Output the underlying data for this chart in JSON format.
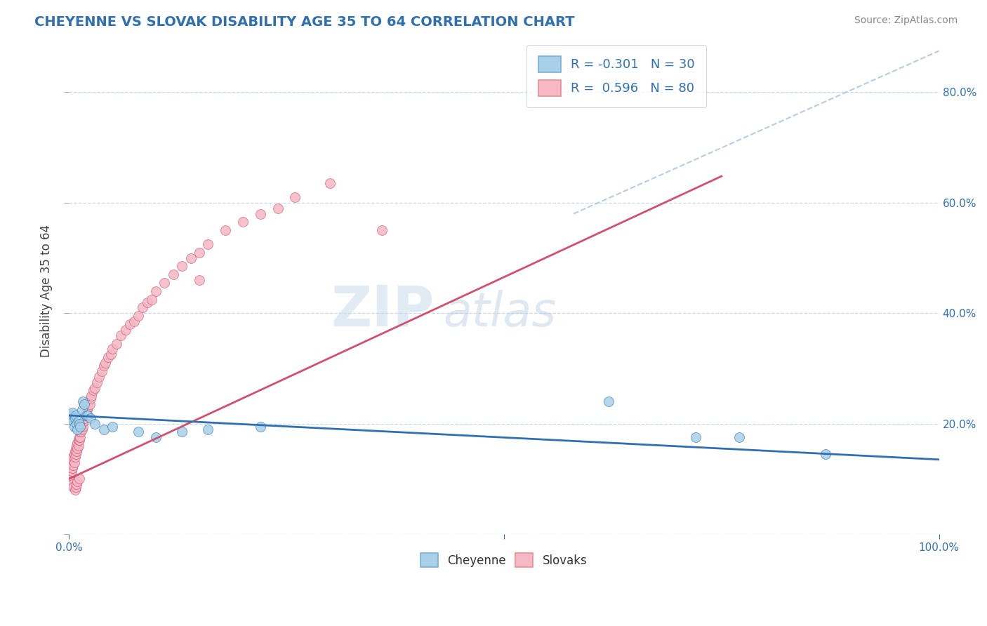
{
  "title": "CHEYENNE VS SLOVAK DISABILITY AGE 35 TO 64 CORRELATION CHART",
  "source": "Source: ZipAtlas.com",
  "ylabel": "Disability Age 35 to 64",
  "xlim": [
    0,
    1.0
  ],
  "ylim": [
    0,
    0.88
  ],
  "cheyenne_color": "#a8d0e8",
  "slovak_color": "#f5b8c4",
  "cheyenne_line_color": "#3070b0",
  "slovak_line_color": "#d05070",
  "dashed_line_color": "#b8cce0",
  "legend_r_cheyenne": "R = -0.301",
  "legend_n_cheyenne": "N = 30",
  "legend_r_slovak": "R =  0.596",
  "legend_n_slovak": "N = 80",
  "watermark_zip": "ZIP",
  "watermark_atlas": "atlas",
  "background_color": "#ffffff",
  "grid_color": "#c8d8e8",
  "cheyenne_x": [
    0.002,
    0.003,
    0.004,
    0.005,
    0.006,
    0.007,
    0.008,
    0.009,
    0.01,
    0.011,
    0.012,
    0.013,
    0.015,
    0.016,
    0.018,
    0.02,
    0.022,
    0.025,
    0.03,
    0.04,
    0.05,
    0.08,
    0.1,
    0.13,
    0.16,
    0.22,
    0.62,
    0.72,
    0.77,
    0.87
  ],
  "cheyenne_y": [
    0.215,
    0.21,
    0.22,
    0.205,
    0.195,
    0.21,
    0.215,
    0.2,
    0.19,
    0.205,
    0.2,
    0.195,
    0.225,
    0.24,
    0.235,
    0.215,
    0.215,
    0.21,
    0.2,
    0.19,
    0.195,
    0.185,
    0.175,
    0.185,
    0.19,
    0.195,
    0.24,
    0.175,
    0.175,
    0.145
  ],
  "slovak_x": [
    0.001,
    0.002,
    0.002,
    0.003,
    0.003,
    0.004,
    0.004,
    0.005,
    0.005,
    0.006,
    0.006,
    0.007,
    0.007,
    0.008,
    0.008,
    0.009,
    0.009,
    0.01,
    0.01,
    0.011,
    0.011,
    0.012,
    0.012,
    0.013,
    0.013,
    0.014,
    0.015,
    0.015,
    0.016,
    0.017,
    0.018,
    0.019,
    0.02,
    0.021,
    0.022,
    0.024,
    0.025,
    0.026,
    0.028,
    0.03,
    0.032,
    0.035,
    0.038,
    0.04,
    0.042,
    0.045,
    0.048,
    0.05,
    0.055,
    0.06,
    0.065,
    0.07,
    0.075,
    0.08,
    0.085,
    0.09,
    0.095,
    0.1,
    0.11,
    0.12,
    0.13,
    0.14,
    0.15,
    0.16,
    0.18,
    0.2,
    0.22,
    0.24,
    0.26,
    0.3,
    0.003,
    0.004,
    0.005,
    0.007,
    0.008,
    0.009,
    0.01,
    0.012,
    0.15,
    0.36
  ],
  "slovak_y": [
    0.105,
    0.11,
    0.12,
    0.115,
    0.13,
    0.12,
    0.135,
    0.125,
    0.14,
    0.13,
    0.145,
    0.14,
    0.15,
    0.145,
    0.155,
    0.15,
    0.16,
    0.155,
    0.165,
    0.16,
    0.17,
    0.17,
    0.175,
    0.175,
    0.185,
    0.185,
    0.19,
    0.2,
    0.195,
    0.205,
    0.21,
    0.215,
    0.22,
    0.225,
    0.23,
    0.235,
    0.245,
    0.25,
    0.26,
    0.265,
    0.275,
    0.285,
    0.295,
    0.305,
    0.31,
    0.32,
    0.325,
    0.335,
    0.345,
    0.36,
    0.37,
    0.38,
    0.385,
    0.395,
    0.41,
    0.42,
    0.425,
    0.44,
    0.455,
    0.47,
    0.485,
    0.5,
    0.51,
    0.525,
    0.55,
    0.565,
    0.58,
    0.59,
    0.61,
    0.635,
    0.095,
    0.09,
    0.085,
    0.08,
    0.085,
    0.09,
    0.095,
    0.1,
    0.46,
    0.55
  ],
  "slovak_line_x0": 0.0,
  "slovak_line_x1": 0.75,
  "slovak_line_y0": 0.1,
  "slovak_line_y1": 0.648,
  "cheyenne_line_x0": 0.0,
  "cheyenne_line_x1": 1.0,
  "cheyenne_line_y0": 0.215,
  "cheyenne_line_y1": 0.135,
  "dash_line_x0": 0.58,
  "dash_line_x1": 1.0,
  "dash_line_y0": 0.58,
  "dash_line_y1": 0.875
}
